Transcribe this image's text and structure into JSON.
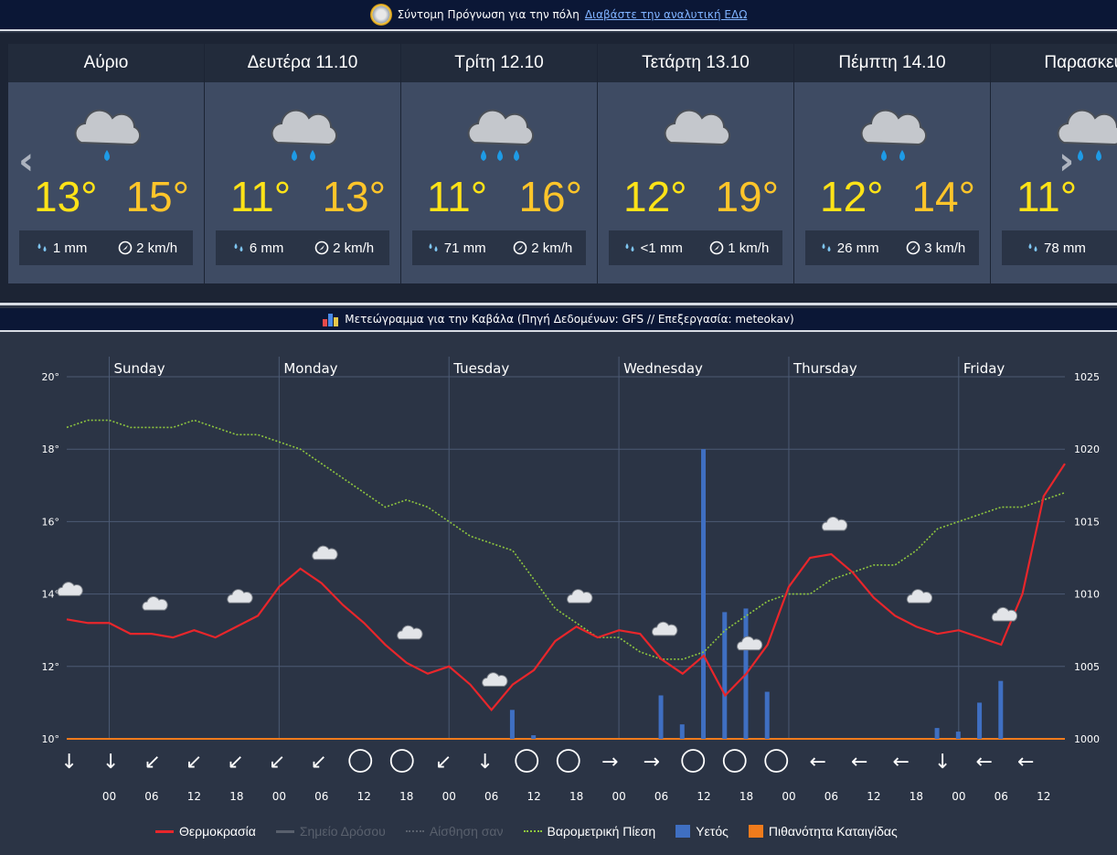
{
  "header": {
    "text": "Σύντομη Πρόγνωση για την πόλη",
    "link": "Διαβάστε την αναλυτική ΕΔΩ"
  },
  "days": [
    {
      "label": "Αύριο",
      "min": "13°",
      "max": "15°",
      "rain": "1 mm",
      "wind": "2 km/h",
      "icon": "cloud-rain-1-icon",
      "drops": 1
    },
    {
      "label": "Δευτέρα 11.10",
      "min": "11°",
      "max": "13°",
      "rain": "6 mm",
      "wind": "2 km/h",
      "icon": "cloud-rain-2-icon",
      "drops": 2
    },
    {
      "label": "Τρίτη 12.10",
      "min": "11°",
      "max": "16°",
      "rain": "71 mm",
      "wind": "2 km/h",
      "icon": "cloud-rain-3-icon",
      "drops": 3
    },
    {
      "label": "Τετάρτη 13.10",
      "min": "12°",
      "max": "19°",
      "rain": "<1 mm",
      "wind": "1 km/h",
      "icon": "cloud-icon",
      "drops": 0
    },
    {
      "label": "Πέμπτη 14.10",
      "min": "12°",
      "max": "14°",
      "rain": "26 mm",
      "wind": "3 km/h",
      "icon": "cloud-rain-2-icon",
      "drops": 2
    },
    {
      "label": "Παρασκευή",
      "min": "11°",
      "max": "",
      "rain": "78 mm",
      "wind": "",
      "icon": "cloud-rain-2-icon",
      "drops": 2
    }
  ],
  "chart_header": {
    "text": "Μετεώγραμμα για την Καβάλα (Πηγή Δεδομένων: GFS // Επεξεργασία: meteokav)"
  },
  "legend": {
    "temp": "Θερμοκρασία",
    "dew": "Σημείο Δρόσου",
    "feels": "Αίσθηση σαν",
    "pressure": "Βαρομετρική Πίεση",
    "rain": "Υετός",
    "storm": "Πιθανότητα Καταιγίδας"
  },
  "colors": {
    "temp": "#e8262b",
    "pressure": "#8ec63f",
    "rain": "#3f6fc2",
    "storm": "#f07b1c"
  },
  "chart_data": {
    "type": "line",
    "days": [
      "Sunday",
      "Monday",
      "Tuesday",
      "Wednesday",
      "Thursday",
      "Friday"
    ],
    "hour_ticks": [
      "00",
      "06",
      "12",
      "18",
      "00",
      "06",
      "12",
      "18",
      "00",
      "06",
      "12",
      "18",
      "00",
      "06",
      "12",
      "18",
      "00",
      "06",
      "12",
      "18",
      "00",
      "06",
      "12"
    ],
    "y_left": {
      "ticks": [
        "10°",
        "12°",
        "14°",
        "16°",
        "18°",
        "20°"
      ],
      "range": [
        10,
        20
      ]
    },
    "y_right": {
      "ticks": [
        "1000",
        "1005",
        "1010",
        "1015",
        "1020",
        "1025"
      ],
      "range": [
        1000,
        1025
      ]
    },
    "x_range": [
      -6,
      135
    ],
    "temperature": [
      [
        -6,
        13.3
      ],
      [
        -3,
        13.2
      ],
      [
        0,
        13.2
      ],
      [
        3,
        12.9
      ],
      [
        6,
        12.9
      ],
      [
        9,
        12.8
      ],
      [
        12,
        13.0
      ],
      [
        15,
        12.8
      ],
      [
        18,
        13.1
      ],
      [
        21,
        13.4
      ],
      [
        24,
        14.2
      ],
      [
        27,
        14.7
      ],
      [
        30,
        14.3
      ],
      [
        33,
        13.7
      ],
      [
        36,
        13.2
      ],
      [
        39,
        12.6
      ],
      [
        42,
        12.1
      ],
      [
        45,
        11.8
      ],
      [
        48,
        12.0
      ],
      [
        51,
        11.5
      ],
      [
        54,
        10.8
      ],
      [
        57,
        11.5
      ],
      [
        60,
        11.9
      ],
      [
        63,
        12.7
      ],
      [
        66,
        13.1
      ],
      [
        69,
        12.8
      ],
      [
        72,
        13.0
      ],
      [
        75,
        12.9
      ],
      [
        78,
        12.2
      ],
      [
        81,
        11.8
      ],
      [
        84,
        12.3
      ],
      [
        87,
        11.2
      ],
      [
        90,
        11.8
      ],
      [
        93,
        12.6
      ],
      [
        96,
        14.2
      ],
      [
        99,
        15.0
      ],
      [
        102,
        15.1
      ],
      [
        105,
        14.6
      ],
      [
        108,
        13.9
      ],
      [
        111,
        13.4
      ],
      [
        114,
        13.1
      ],
      [
        117,
        12.9
      ],
      [
        120,
        13.0
      ],
      [
        123,
        12.8
      ],
      [
        126,
        12.6
      ],
      [
        129,
        14.0
      ],
      [
        132,
        16.7
      ],
      [
        135,
        17.6
      ]
    ],
    "pressure": [
      [
        -6,
        1021.5
      ],
      [
        -3,
        1022
      ],
      [
        0,
        1022
      ],
      [
        3,
        1021.5
      ],
      [
        6,
        1021.5
      ],
      [
        9,
        1021.5
      ],
      [
        12,
        1022
      ],
      [
        15,
        1021.5
      ],
      [
        18,
        1021
      ],
      [
        21,
        1021
      ],
      [
        24,
        1020.5
      ],
      [
        27,
        1020
      ],
      [
        30,
        1019
      ],
      [
        33,
        1018
      ],
      [
        36,
        1017
      ],
      [
        39,
        1016
      ],
      [
        42,
        1016.5
      ],
      [
        45,
        1016
      ],
      [
        48,
        1015
      ],
      [
        51,
        1014
      ],
      [
        54,
        1013.5
      ],
      [
        57,
        1013
      ],
      [
        60,
        1011
      ],
      [
        63,
        1009
      ],
      [
        66,
        1008
      ],
      [
        69,
        1007
      ],
      [
        72,
        1007
      ],
      [
        75,
        1006
      ],
      [
        78,
        1005.5
      ],
      [
        81,
        1005.5
      ],
      [
        84,
        1006
      ],
      [
        87,
        1007.5
      ],
      [
        90,
        1008.5
      ],
      [
        93,
        1009.5
      ],
      [
        96,
        1010
      ],
      [
        99,
        1010
      ],
      [
        102,
        1011
      ],
      [
        105,
        1011.5
      ],
      [
        108,
        1012
      ],
      [
        111,
        1012
      ],
      [
        114,
        1013
      ],
      [
        117,
        1014.5
      ],
      [
        120,
        1015
      ],
      [
        123,
        1015.5
      ],
      [
        126,
        1016
      ],
      [
        129,
        1016
      ],
      [
        132,
        1016.5
      ],
      [
        135,
        1017
      ]
    ],
    "rain": [
      [
        57,
        0.8
      ],
      [
        60,
        0.1
      ],
      [
        78,
        1.2
      ],
      [
        81,
        0.4
      ],
      [
        84,
        8.0
      ],
      [
        87,
        3.5
      ],
      [
        90,
        3.6
      ],
      [
        93,
        1.3
      ],
      [
        117,
        0.3
      ],
      [
        120,
        0.2
      ],
      [
        123,
        1.0
      ],
      [
        126,
        1.6
      ]
    ],
    "directions": [
      "↓",
      "↓",
      "↙",
      "↙",
      "↙",
      "↙",
      "↙",
      "calm",
      "calm",
      "↙",
      "↓",
      "calm",
      "calm",
      "→",
      "→",
      "calm",
      "calm",
      "calm",
      "←",
      "←",
      "←",
      "↓",
      "←",
      "←"
    ]
  }
}
